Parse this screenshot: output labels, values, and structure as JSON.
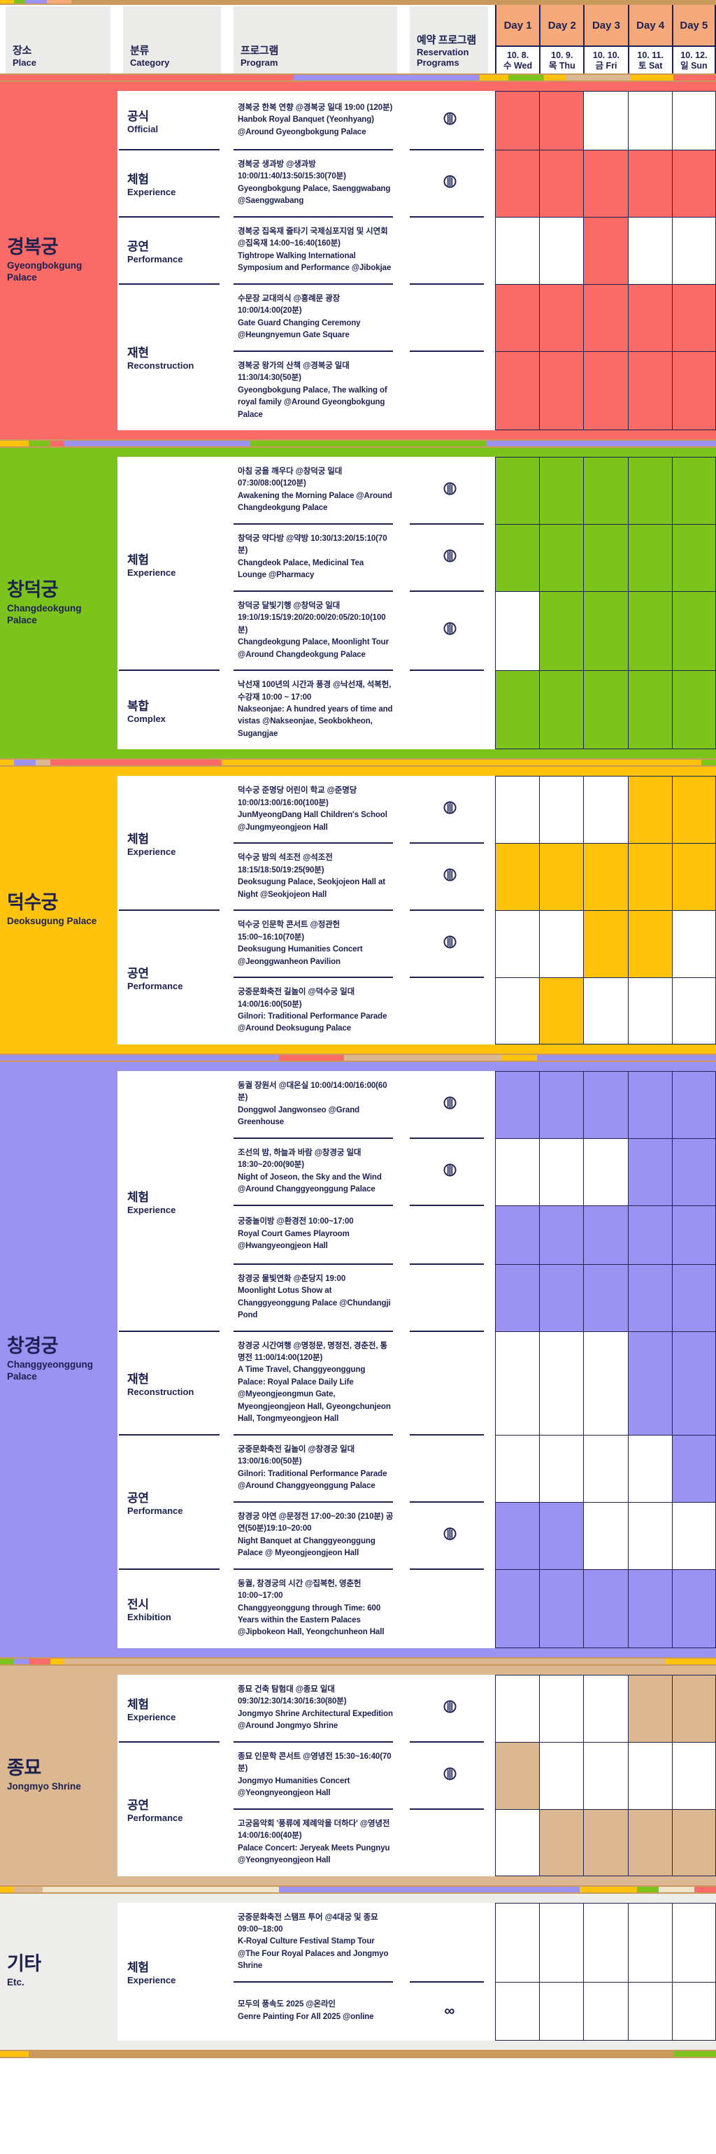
{
  "title": "K-Royal Culture Festival 2025 program schedule",
  "colors": {
    "navy": "#1d2150",
    "day_header_orange": "#f6a97b",
    "header_gray": "#ebebe9",
    "strip_line": "#c99a5b",
    "red": "#fa6b68",
    "green": "#7cc41d",
    "yellow": "#ffc30d",
    "purple": "#9c92f2",
    "tan": "#dbb892",
    "etc_gray": "#ededeb"
  },
  "header": {
    "columns": [
      {
        "ko": "장소",
        "en": "Place"
      },
      {
        "ko": "분류",
        "en": "Category"
      },
      {
        "ko": "프로그램",
        "en": "Program"
      },
      {
        "ko": "예약 프로그램",
        "en": "Reservation Programs"
      }
    ],
    "days": [
      {
        "label": "Day 1",
        "date": "10. 8.",
        "dow": "수 Wed"
      },
      {
        "label": "Day 2",
        "date": "10. 9.",
        "dow": "목 Thu"
      },
      {
        "label": "Day 3",
        "date": "10. 10.",
        "dow": "금 Fri"
      },
      {
        "label": "Day 4",
        "date": "10. 11.",
        "dow": "토 Sat"
      },
      {
        "label": "Day 5",
        "date": "10. 12.",
        "dow": "일 Sun"
      }
    ]
  },
  "icons": {
    "reservation": "striped-ticket-circle-icon",
    "online_always": "∞"
  },
  "sections": [
    {
      "place_ko": "경복궁",
      "place_en": "Gyeongbokgung Palace",
      "color_key": "red",
      "groups": [
        {
          "cat_ko": "공식",
          "cat_en": "Official",
          "programs": [
            {
              "ko": "경복궁 한복 연향 @경복궁 일대 19:00 (120분)",
              "en": "Hanbok Royal Banquet (Yeonhyang) @Around Gyeongbokgung Palace",
              "reservation": "ticket",
              "days": [
                1,
                1,
                0,
                0,
                0
              ]
            }
          ]
        },
        {
          "cat_ko": "체험",
          "cat_en": "Experience",
          "programs": [
            {
              "ko": "경복궁 생과방 @생과방 10:00/11:40/13:50/15:30(70분)",
              "en": "Gyeongbokgung Palace, Saenggwabang @Saenggwabang",
              "reservation": "ticket",
              "days": [
                1,
                1,
                1,
                1,
                1
              ]
            }
          ]
        },
        {
          "cat_ko": "공연",
          "cat_en": "Performance",
          "programs": [
            {
              "ko": "경복궁 집옥재 줄타기 국제심포지엄 및 시연회 @집옥재 14:00~16:40(160분)",
              "en": "Tightrope Walking International Symposium and Performance @Jibokjae",
              "reservation": "",
              "days": [
                0,
                0,
                1,
                0,
                0
              ]
            }
          ]
        },
        {
          "cat_ko": "재현",
          "cat_en": "Reconstruction",
          "programs": [
            {
              "ko": "수문장 교대의식 @흥례문 광장 10:00/14:00(20분)",
              "en": "Gate Guard Changing Ceremony @Heungnyemun Gate Square",
              "reservation": "",
              "days": [
                1,
                1,
                1,
                1,
                1
              ]
            },
            {
              "ko": "경복궁 왕가의 산책 @경복궁 일대 11:30/14:30(50분)",
              "en": "Gyeongbokgung Palace, The walking of royal family @Around Gyeongbokgung Palace",
              "reservation": "",
              "days": [
                1,
                1,
                1,
                1,
                1
              ]
            }
          ]
        }
      ]
    },
    {
      "place_ko": "창덕궁",
      "place_en": "Changdeokgung Palace",
      "color_key": "green",
      "groups": [
        {
          "cat_ko": "체험",
          "cat_en": "Experience",
          "programs": [
            {
              "ko": "아침 궁을 깨우다 @창덕궁 일대 07:30/08:00(120분)",
              "en": "Awakening the Morning Palace @Around Changdeokgung Palace",
              "reservation": "ticket",
              "days": [
                1,
                1,
                1,
                1,
                1
              ]
            },
            {
              "ko": "창덕궁 약다방 @약방 10:30/13:20/15:10(70분)",
              "en": "Changdeok Palace, Medicinal Tea Lounge @Pharmacy",
              "reservation": "ticket",
              "days": [
                1,
                1,
                1,
                1,
                1
              ]
            },
            {
              "ko": "창덕궁 달빛기행 @창덕궁 일대 19:10/19:15/19:20/20:00/20:05/20:10(100분)",
              "en": "Changdeokgung Palace, Moonlight Tour @Around Changdeokgung Palace",
              "reservation": "ticket",
              "days": [
                0,
                1,
                1,
                1,
                1
              ]
            }
          ]
        },
        {
          "cat_ko": "복합",
          "cat_en": "Complex",
          "programs": [
            {
              "ko": "낙선재 100년의 시간과 풍경 @낙선재, 석복헌, 수강재 10:00 ~ 17:00",
              "en": "Nakseonjae: A hundred years of time and vistas @Nakseonjae, Seokbokheon, Sugangjae",
              "reservation": "",
              "days": [
                1,
                1,
                1,
                1,
                1
              ]
            }
          ]
        }
      ]
    },
    {
      "place_ko": "덕수궁",
      "place_en": "Deoksugung Palace",
      "color_key": "yellow",
      "groups": [
        {
          "cat_ko": "체험",
          "cat_en": "Experience",
          "programs": [
            {
              "ko": "덕수궁 준명당 어린이 학교 @준명당 10:00/13:00/16:00(100분)",
              "en": "JunMyeongDang Hall Children's School @Jungmyeongjeon Hall",
              "reservation": "ticket",
              "days": [
                0,
                0,
                0,
                1,
                1
              ]
            },
            {
              "ko": "덕수궁 밤의 석조전 @석조전 18:15/18:50/19:25(90분)",
              "en": "Deoksugung Palace, Seokjojeon Hall at Night @Seokjojeon Hall",
              "reservation": "ticket",
              "days": [
                1,
                1,
                1,
                1,
                1
              ]
            }
          ]
        },
        {
          "cat_ko": "공연",
          "cat_en": "Performance",
          "programs": [
            {
              "ko": "덕수궁 인문학 콘서트 @정관헌 15:00~16:10(70분)",
              "en": "Deoksugung Humanities Concert @Jeonggwanheon Pavilion",
              "reservation": "ticket",
              "days": [
                0,
                0,
                1,
                1,
                0
              ]
            },
            {
              "ko": "궁중문화축전 길놀이 @덕수궁 일대 14:00/16:00(50분)",
              "en": "Gilnori: Traditional Performance Parade @Around Deoksugung Palace",
              "reservation": "",
              "days": [
                0,
                1,
                0,
                0,
                0
              ]
            }
          ]
        }
      ]
    },
    {
      "place_ko": "창경궁",
      "place_en": "Changgyeonggung Palace",
      "color_key": "purple",
      "groups": [
        {
          "cat_ko": "체험",
          "cat_en": "Experience",
          "programs": [
            {
              "ko": "동궐 장원서 @대온실 10:00/14:00/16:00(60분)",
              "en": "Donggwol Jangwonseo @Grand Greenhouse",
              "reservation": "ticket",
              "days": [
                1,
                1,
                1,
                1,
                1
              ]
            },
            {
              "ko": "조선의 밤, 하늘과 바람 @창경궁 일대 18:30~20:00(90분)",
              "en": "Night of Joseon, the Sky and the Wind @Around Changgyeonggung Palace",
              "reservation": "ticket",
              "days": [
                0,
                0,
                0,
                1,
                1
              ]
            },
            {
              "ko": "궁중놀이방 @환경전 10:00~17:00",
              "en": "Royal Court Games Playroom @Hwangyeongjeon Hall",
              "reservation": "",
              "days": [
                1,
                1,
                1,
                1,
                1
              ]
            },
            {
              "ko": "창경궁 물빛연화 @춘당지 19:00",
              "en": "Moonlight Lotus Show at Changgyeonggung Palace @Chundangji Pond",
              "reservation": "",
              "days": [
                1,
                1,
                1,
                1,
                1
              ]
            }
          ]
        },
        {
          "cat_ko": "재현",
          "cat_en": "Reconstruction",
          "programs": [
            {
              "ko": "창경궁 시간여행 @명정문, 명정전, 경춘전, 통명전 11:00/14:00(120분)",
              "en": "A Time Travel, Changgyeonggung Palace: Royal Palace Daily Life @Myeongjeongmun Gate, Myeongjeongjeon Hall, Gyeongchunjeon Hall, Tongmyeongjeon Hall",
              "reservation": "",
              "days": [
                0,
                0,
                0,
                1,
                1
              ]
            }
          ]
        },
        {
          "cat_ko": "공연",
          "cat_en": "Performance",
          "programs": [
            {
              "ko": "궁중문화축전 길놀이 @창경궁 일대 13:00/16:00(50분)",
              "en": "Gilnori: Traditional Performance Parade @Around Changgyeonggung Palace",
              "reservation": "",
              "days": [
                0,
                0,
                0,
                0,
                1
              ]
            },
            {
              "ko": "창경궁 야연 @문정전 17:00~20:30 (210분) 공연(50분)19:10~20:00",
              "en": "Night Banquet at Changgyeonggung Palace @ Myeongjeongjeon Hall",
              "reservation": "ticket",
              "days": [
                1,
                1,
                0,
                0,
                0
              ]
            }
          ]
        },
        {
          "cat_ko": "전시",
          "cat_en": "Exhibition",
          "programs": [
            {
              "ko": "동궐, 창경궁의 시간 @집복헌, 영춘헌 10:00~17:00",
              "en": "Changgyeonggung through Time: 600 Years within the Eastern Palaces @Jipbokeon Hall, Yeongchunheon Hall",
              "reservation": "",
              "days": [
                1,
                1,
                1,
                1,
                1
              ]
            }
          ]
        }
      ]
    },
    {
      "place_ko": "종묘",
      "place_en": "Jongmyo Shrine",
      "color_key": "tan",
      "groups": [
        {
          "cat_ko": "체험",
          "cat_en": "Experience",
          "programs": [
            {
              "ko": "종묘 건축 탐험대 @종묘 일대 09:30/12:30/14:30/16:30(80분)",
              "en": "Jongmyo Shrine Architectural Expedition @Around Jongmyo Shrine",
              "reservation": "ticket",
              "days": [
                0,
                0,
                0,
                1,
                1
              ]
            }
          ]
        },
        {
          "cat_ko": "공연",
          "cat_en": "Performance",
          "programs": [
            {
              "ko": "종묘 인문학 콘서트 @영녕전 15:30~16:40(70분)",
              "en": "Jongmyo Humanities Concert @Yeongnyeongjeon Hall",
              "reservation": "ticket",
              "days": [
                1,
                0,
                0,
                0,
                0
              ]
            },
            {
              "ko": "고궁음악회 '풍류에 제례악을 더하다' @영녕전 14:00/16:00(40분)",
              "en": "Palace Concert: Jeryeak Meets Pungnyu @Yeongnyeongjeon Hall",
              "reservation": "",
              "days": [
                0,
                1,
                1,
                1,
                1
              ]
            }
          ]
        }
      ]
    },
    {
      "place_ko": "기타",
      "place_en": "Etc.",
      "color_key": "etc_gray",
      "groups": [
        {
          "cat_ko": "체험",
          "cat_en": "Experience",
          "programs": [
            {
              "ko": "궁중문화축전 스탬프 투어 @4대궁 및 종묘 09:00~18:00",
              "en": "K-Royal Culture Festival Stamp Tour @The Four Royal Palaces and Jongmyo Shrine",
              "reservation": "",
              "days": [
                0,
                0,
                0,
                0,
                0
              ]
            },
            {
              "ko": "모두의 풍속도 2025 @온라인",
              "en": "Genre Painting For All 2025 @online",
              "reservation": "infinity",
              "days": [
                0,
                0,
                0,
                0,
                0
              ]
            }
          ]
        }
      ]
    }
  ]
}
